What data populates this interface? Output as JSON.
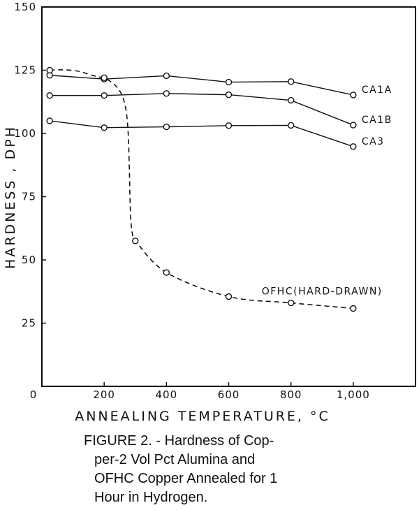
{
  "chart_data": {
    "type": "line",
    "xlabel": "ANNEALING  TEMPERATURE, °C",
    "ylabel": "HARDNESS , DPH",
    "xlim": [
      0,
      1200
    ],
    "ylim": [
      0,
      150
    ],
    "x_ticks": [
      0,
      200,
      400,
      600,
      800,
      1000
    ],
    "x_tick_labels": [
      "0",
      "200",
      "400",
      "600",
      "800",
      "1,000"
    ],
    "y_ticks": [
      25,
      50,
      75,
      100,
      125,
      150
    ],
    "y_tick_labels": [
      "25",
      "50",
      "75",
      "100",
      "125",
      "150"
    ],
    "grid": false,
    "series": [
      {
        "name": "CA1A",
        "style": "solid",
        "x": [
          25,
          200,
          400,
          600,
          800,
          1000
        ],
        "y": [
          123,
          121.5,
          122.8,
          120.3,
          120.5,
          115.2
        ]
      },
      {
        "name": "CA1B",
        "style": "solid",
        "x": [
          25,
          200,
          400,
          600,
          800,
          1000
        ],
        "y": [
          115,
          115,
          115.8,
          115.3,
          113.1,
          103.3
        ]
      },
      {
        "name": "CA3",
        "style": "solid",
        "x": [
          25,
          200,
          400,
          600,
          800,
          1000
        ],
        "y": [
          105,
          102.3,
          102.6,
          103.1,
          103.2,
          94.8
        ]
      },
      {
        "name": "OFHC(HARD-DRAWN)",
        "style": "dashed",
        "x": [
          25,
          200,
          300,
          400,
          600,
          800,
          1000
        ],
        "y": [
          125,
          122,
          57.5,
          45,
          35.5,
          33,
          30.8
        ]
      }
    ]
  },
  "caption": {
    "line1": "FIGURE 2. - Hardness of Cop-",
    "line2": "per-2 Vol Pct Alumina and",
    "line3": "OFHC Copper Annealed for 1",
    "line4": "Hour in Hydrogen."
  }
}
